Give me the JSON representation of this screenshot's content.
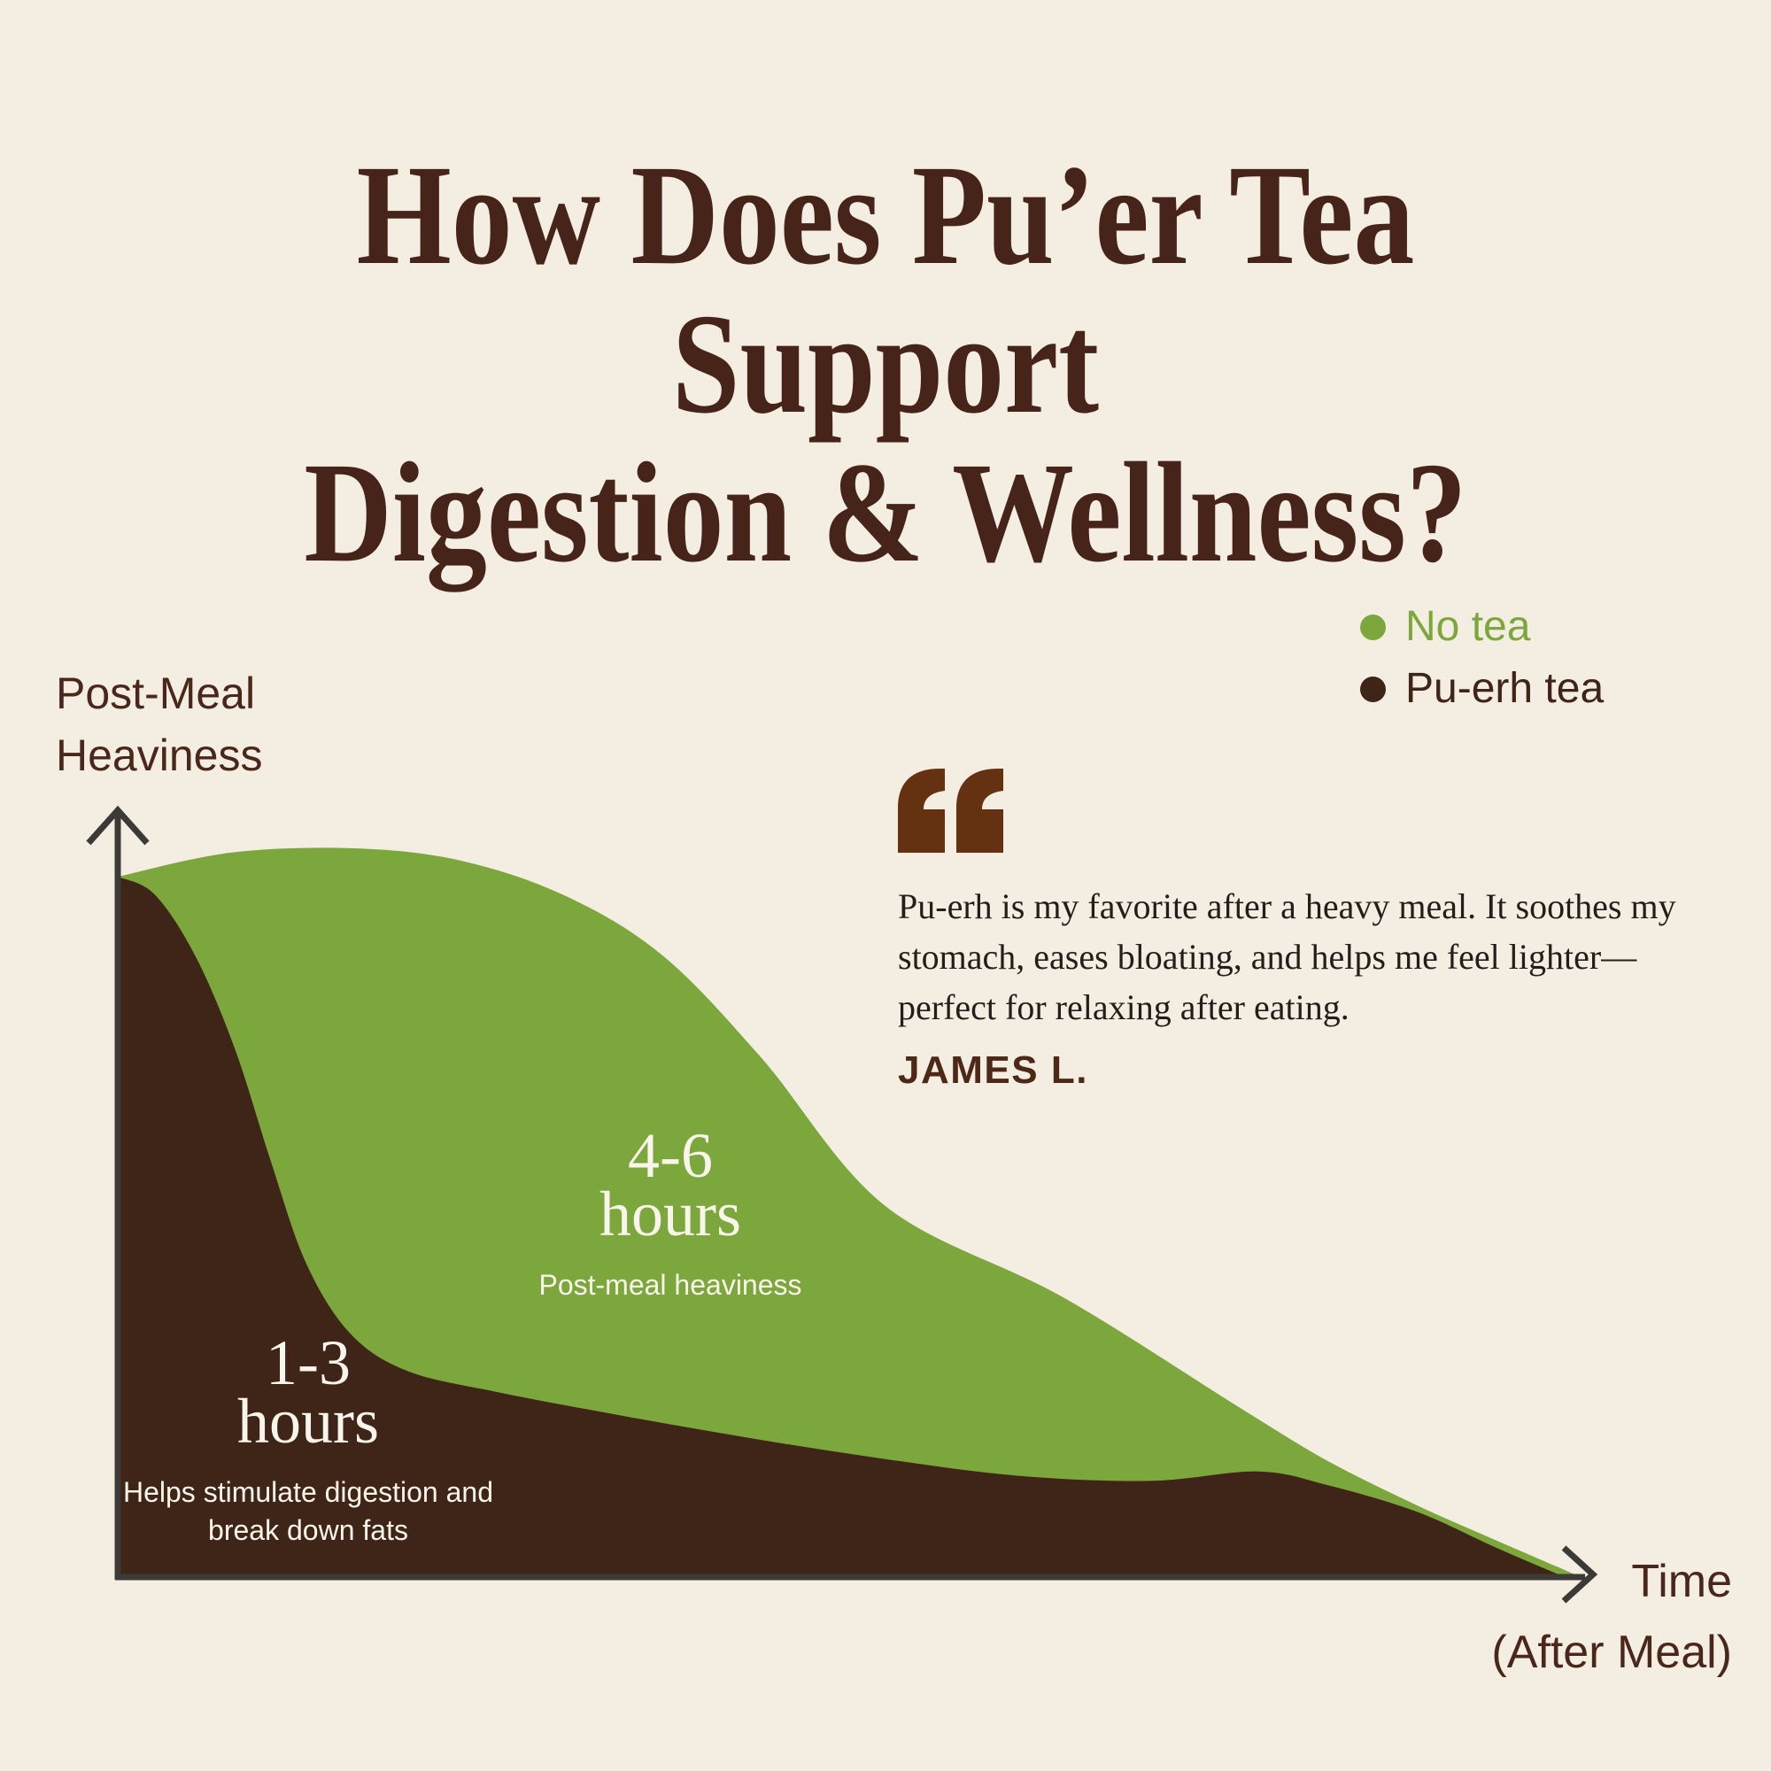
{
  "title": {
    "line1": "How Does Pu’er Tea Support",
    "line2": "Digestion & Wellness?"
  },
  "legend": {
    "position": "top-right",
    "items": [
      {
        "label": "No tea",
        "color": "#7CA73C"
      },
      {
        "label": "Pu-erh tea",
        "color": "#3F2418"
      }
    ]
  },
  "quote": {
    "icon": "quote-icon",
    "text": "Pu-erh is my favorite after a heavy meal. It soothes my stomach, eases bloating, and helps me feel lighter—perfect for relaxing after eating.",
    "attribution": "JAMES L."
  },
  "chart_data": {
    "type": "area",
    "title": "",
    "xlabel": "Time",
    "xlabel_note": "(After Meal)",
    "ylabel_line1": "Post-Meal",
    "ylabel_line2": "Heaviness",
    "axis_style": "qualitative arrows, no ticks, no grid",
    "grid": false,
    "legend_position": "top-right",
    "x_units": "relative time after meal (0 = meal, 1 = end of axis)",
    "y_units": "relative post-meal heaviness (0 = none, 1 = max)",
    "series": [
      {
        "name": "No tea",
        "color": "#7CA73C",
        "points": [
          [
            0.0,
            0.961
          ],
          [
            0.077,
            0.994
          ],
          [
            0.161,
            1.0
          ],
          [
            0.234,
            0.983
          ],
          [
            0.306,
            0.934
          ],
          [
            0.372,
            0.852
          ],
          [
            0.439,
            0.712
          ],
          [
            0.523,
            0.51
          ],
          [
            0.644,
            0.385
          ],
          [
            0.765,
            0.233
          ],
          [
            0.825,
            0.16
          ],
          [
            0.885,
            0.1
          ],
          [
            0.94,
            0.051
          ],
          [
            0.993,
            0.005
          ]
        ]
      },
      {
        "name": "Pu-erh tea",
        "color": "#3F2418",
        "points": [
          [
            0.0,
            0.961
          ],
          [
            0.025,
            0.937
          ],
          [
            0.053,
            0.852
          ],
          [
            0.08,
            0.724
          ],
          [
            0.104,
            0.573
          ],
          [
            0.128,
            0.433
          ],
          [
            0.158,
            0.336
          ],
          [
            0.197,
            0.284
          ],
          [
            0.258,
            0.255
          ],
          [
            0.342,
            0.223
          ],
          [
            0.433,
            0.191
          ],
          [
            0.523,
            0.163
          ],
          [
            0.614,
            0.14
          ],
          [
            0.704,
            0.133
          ],
          [
            0.777,
            0.146
          ],
          [
            0.825,
            0.127
          ],
          [
            0.885,
            0.091
          ],
          [
            0.94,
            0.041
          ],
          [
            0.983,
            0.004
          ]
        ]
      }
    ],
    "annotations": [
      {
        "series": "No tea",
        "value": "4-6",
        "unit": "hours",
        "caption": "Post-meal heaviness",
        "text_color": "#FAF5EB"
      },
      {
        "series": "Pu-erh tea",
        "value": "1-3",
        "unit": "hours",
        "caption": "Helps stimulate digestion and break down fats",
        "text_color": "#FAF5EB"
      }
    ]
  },
  "colors": {
    "background": "#F4EDE1",
    "title_text": "#47241A",
    "axis": "#3B3A37",
    "axis_label_text": "#49271A",
    "no_tea_green": "#7CA73C",
    "puerh_brown": "#3F2418",
    "area_label_text": "#FAF5EB",
    "quote_icon": "#653211",
    "quote_text": "#241E1A",
    "quote_attribution": "#4E2817"
  }
}
